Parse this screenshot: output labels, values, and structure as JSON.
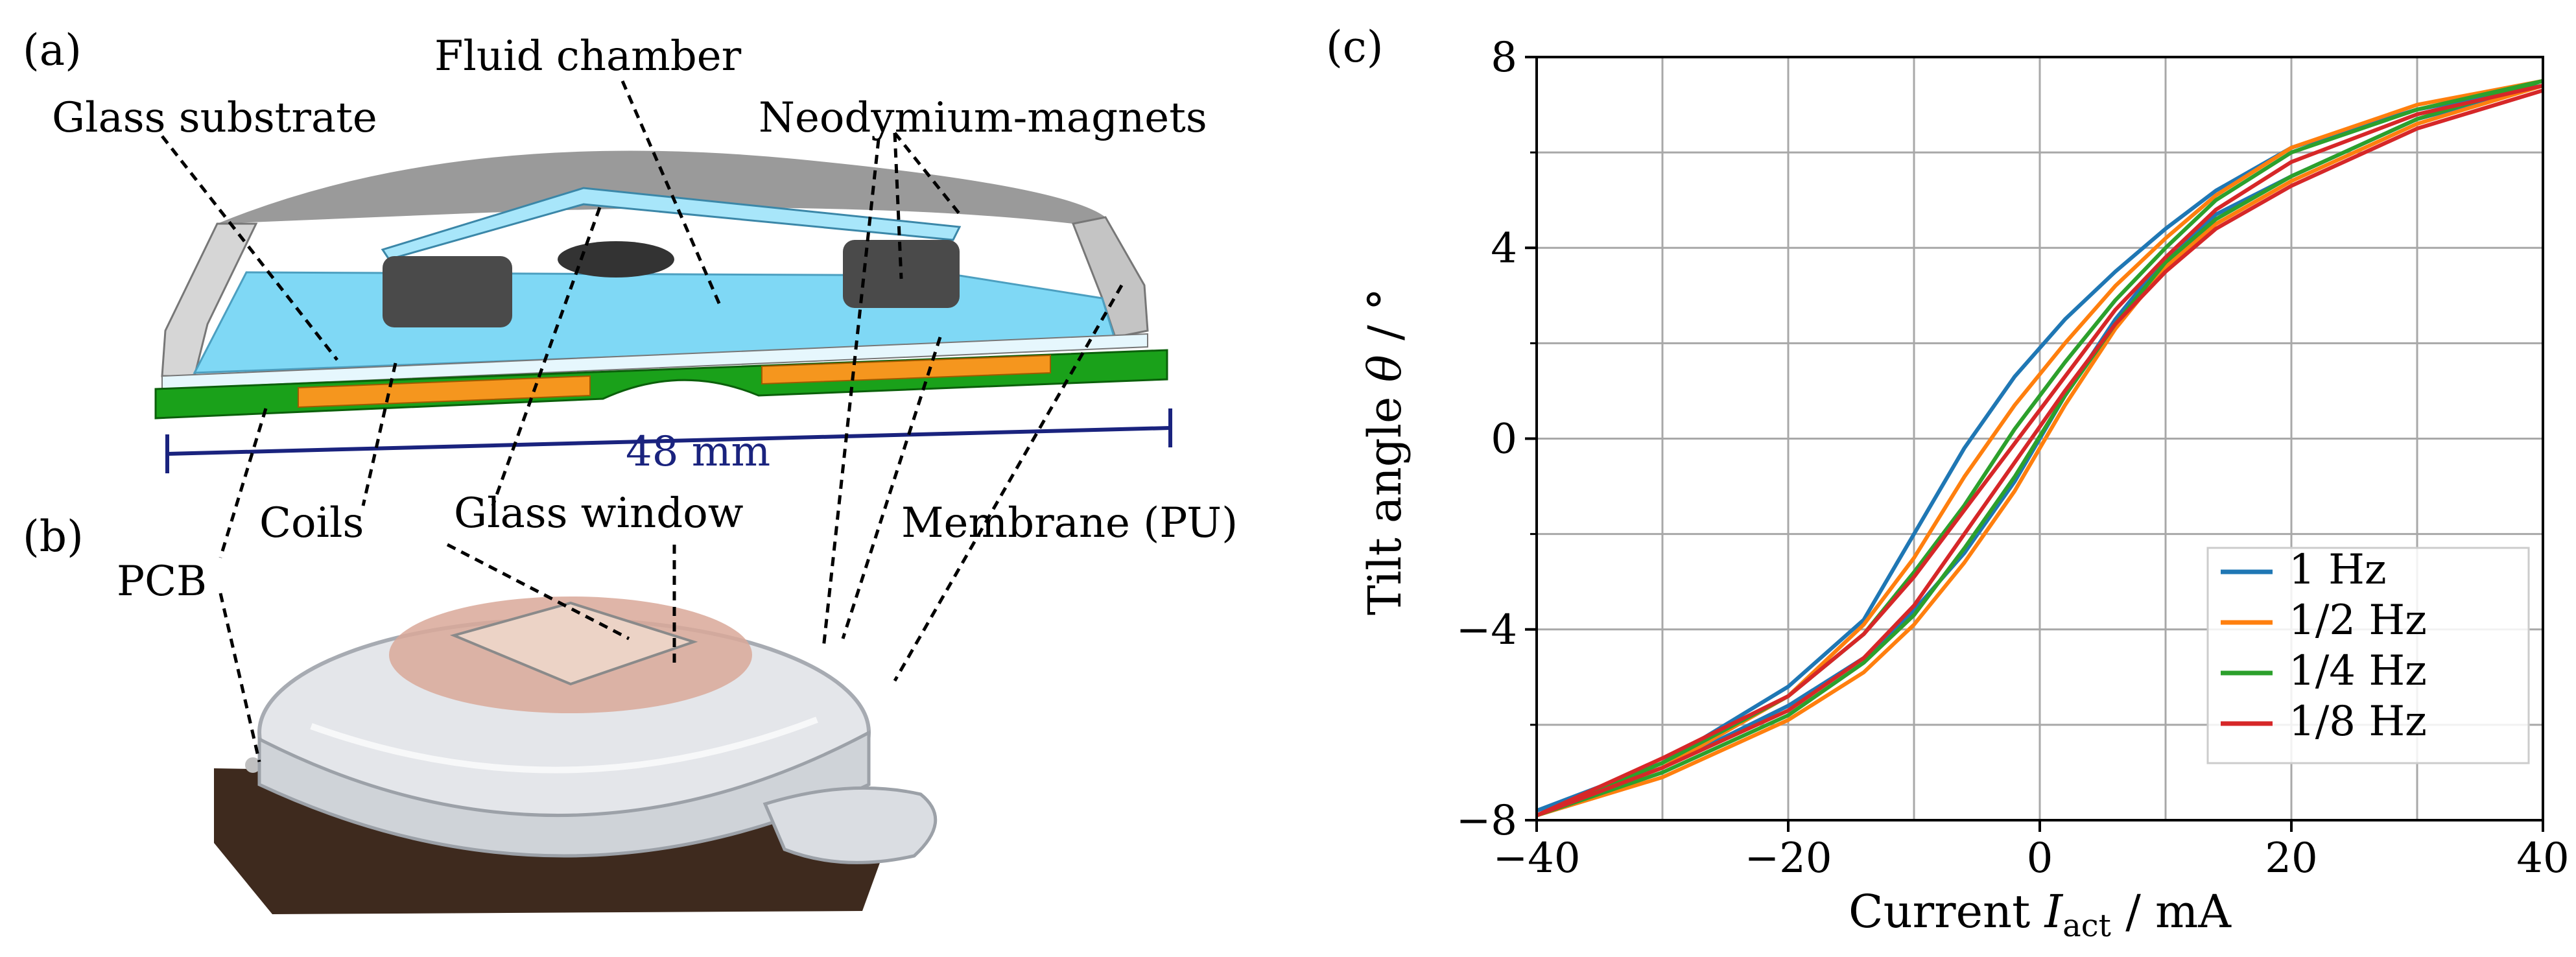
{
  "panels": {
    "a": "(a)",
    "b": "(b)",
    "c": "(c)"
  },
  "callouts": {
    "fluid_chamber": "Fluid chamber",
    "glass_substrate": "Glass substrate",
    "neodymium_magnets": "Neodymium-magnets",
    "dimension": "48 mm",
    "coils": "Coils",
    "glass_window": "Glass window",
    "membrane": "Membrane (PU)",
    "pcb": "PCB"
  },
  "colors": {
    "fluid": "#7fd8f5",
    "pcb": "#1aa11a",
    "coil": "#f5961e",
    "housing": "#c8c8c8",
    "magnet": "#4a4a4a",
    "dimension": "#1a237e",
    "series_1hz": "#1f77b4",
    "series_half": "#ff7f0e",
    "series_quarter": "#2ca02c",
    "series_eighth": "#d62728"
  },
  "chart_data": {
    "type": "line",
    "title": "",
    "xlabel_main": "Current ",
    "xlabel_var": "I",
    "xlabel_sub": "act",
    "xlabel_unit": " / mA",
    "ylabel_main": "Tilt angle ",
    "ylabel_var": "θ",
    "ylabel_unit": " / °",
    "xlim": [
      -40,
      40
    ],
    "ylim": [
      -8,
      8
    ],
    "xticks": [
      -40,
      -20,
      0,
      20,
      40
    ],
    "xtick_labels": [
      "−40",
      "−20",
      "0",
      "20",
      "40"
    ],
    "yticks": [
      -8,
      -4,
      0,
      4,
      8
    ],
    "ytick_labels": [
      "−8",
      "−4",
      "0",
      "4",
      "8"
    ],
    "y_minor_ticks": [
      -6,
      -2,
      2,
      6
    ],
    "grid": true,
    "legend_position": "bottom-right",
    "series": [
      {
        "name": "1 Hz",
        "color": "#1f77b4",
        "ascending": [
          [
            -40,
            -7.8
          ],
          [
            -30,
            -6.9
          ],
          [
            -20,
            -5.6
          ],
          [
            -14,
            -4.6
          ],
          [
            -10,
            -3.6
          ],
          [
            -6,
            -2.4
          ],
          [
            -2,
            -0.9
          ],
          [
            2,
            0.9
          ],
          [
            6,
            2.5
          ],
          [
            10,
            3.8
          ],
          [
            14,
            4.7
          ],
          [
            20,
            5.5
          ],
          [
            30,
            6.7
          ],
          [
            40,
            7.4
          ]
        ],
        "descending": [
          [
            40,
            7.4
          ],
          [
            30,
            6.9
          ],
          [
            20,
            6.1
          ],
          [
            14,
            5.2
          ],
          [
            10,
            4.4
          ],
          [
            6,
            3.5
          ],
          [
            2,
            2.5
          ],
          [
            -2,
            1.3
          ],
          [
            -6,
            -0.2
          ],
          [
            -10,
            -2.0
          ],
          [
            -14,
            -3.8
          ],
          [
            -20,
            -5.2
          ],
          [
            -30,
            -6.8
          ],
          [
            -40,
            -7.8
          ]
        ]
      },
      {
        "name": "1/2 Hz",
        "color": "#ff7f0e",
        "ascending": [
          [
            -40,
            -7.9
          ],
          [
            -30,
            -7.1
          ],
          [
            -20,
            -5.9
          ],
          [
            -14,
            -4.9
          ],
          [
            -10,
            -3.9
          ],
          [
            -6,
            -2.6
          ],
          [
            -2,
            -1.1
          ],
          [
            2,
            0.7
          ],
          [
            6,
            2.3
          ],
          [
            10,
            3.6
          ],
          [
            14,
            4.5
          ],
          [
            20,
            5.4
          ],
          [
            30,
            6.6
          ],
          [
            40,
            7.4
          ]
        ],
        "descending": [
          [
            40,
            7.5
          ],
          [
            30,
            7.0
          ],
          [
            20,
            6.1
          ],
          [
            14,
            5.1
          ],
          [
            10,
            4.2
          ],
          [
            6,
            3.2
          ],
          [
            2,
            2.0
          ],
          [
            -2,
            0.7
          ],
          [
            -6,
            -0.8
          ],
          [
            -10,
            -2.5
          ],
          [
            -14,
            -3.9
          ],
          [
            -20,
            -5.4
          ],
          [
            -30,
            -6.9
          ],
          [
            -40,
            -7.9
          ]
        ]
      },
      {
        "name": "1/4 Hz",
        "color": "#2ca02c",
        "ascending": [
          [
            -40,
            -7.9
          ],
          [
            -30,
            -7.0
          ],
          [
            -20,
            -5.8
          ],
          [
            -14,
            -4.7
          ],
          [
            -10,
            -3.7
          ],
          [
            -6,
            -2.3
          ],
          [
            -2,
            -0.8
          ],
          [
            2,
            0.9
          ],
          [
            6,
            2.4
          ],
          [
            10,
            3.7
          ],
          [
            14,
            4.6
          ],
          [
            20,
            5.5
          ],
          [
            30,
            6.7
          ],
          [
            40,
            7.5
          ]
        ],
        "descending": [
          [
            40,
            7.5
          ],
          [
            30,
            6.9
          ],
          [
            20,
            6.0
          ],
          [
            14,
            5.0
          ],
          [
            10,
            4.0
          ],
          [
            6,
            2.9
          ],
          [
            2,
            1.6
          ],
          [
            -2,
            0.2
          ],
          [
            -6,
            -1.4
          ],
          [
            -10,
            -2.8
          ],
          [
            -14,
            -4.1
          ],
          [
            -20,
            -5.4
          ],
          [
            -30,
            -6.8
          ],
          [
            -40,
            -7.9
          ]
        ]
      },
      {
        "name": "1/8 Hz",
        "color": "#d62728",
        "ascending": [
          [
            -40,
            -7.9
          ],
          [
            -30,
            -6.9
          ],
          [
            -20,
            -5.7
          ],
          [
            -14,
            -4.6
          ],
          [
            -10,
            -3.5
          ],
          [
            -6,
            -2.0
          ],
          [
            -2,
            -0.5
          ],
          [
            2,
            1.0
          ],
          [
            6,
            2.4
          ],
          [
            10,
            3.5
          ],
          [
            14,
            4.4
          ],
          [
            20,
            5.3
          ],
          [
            30,
            6.5
          ],
          [
            40,
            7.3
          ]
        ],
        "descending": [
          [
            40,
            7.4
          ],
          [
            30,
            6.8
          ],
          [
            20,
            5.8
          ],
          [
            14,
            4.8
          ],
          [
            10,
            3.8
          ],
          [
            6,
            2.7
          ],
          [
            2,
            1.3
          ],
          [
            -2,
            -0.1
          ],
          [
            -6,
            -1.5
          ],
          [
            -10,
            -2.9
          ],
          [
            -14,
            -4.1
          ],
          [
            -20,
            -5.4
          ],
          [
            -30,
            -6.7
          ],
          [
            -40,
            -7.9
          ]
        ]
      }
    ]
  }
}
